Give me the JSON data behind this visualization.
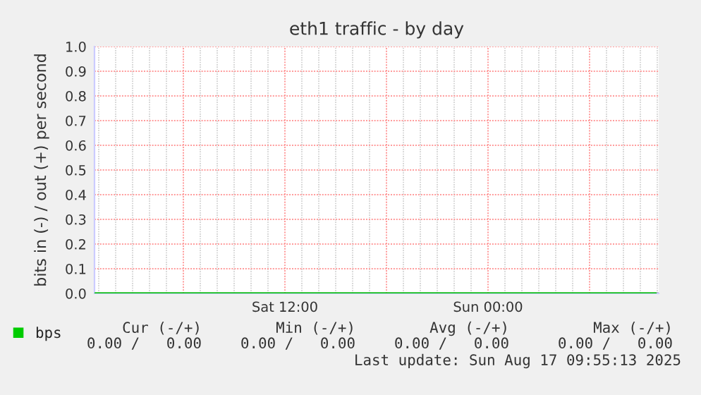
{
  "chart_data": {
    "type": "line",
    "title": "eth1 traffic - by day",
    "ylabel": "bits in (-) / out (+) per second",
    "x": [
      "2025-08-16T00:45",
      "2025-08-16T12:00",
      "2025-08-17T00:00",
      "2025-08-17T09:55"
    ],
    "series": [
      {
        "name": "bps",
        "color": "#00cc00",
        "values": [
          0,
          0,
          0,
          0
        ]
      }
    ],
    "xlim": [
      "2025-08-16T00:45",
      "2025-08-17T10:05"
    ],
    "xticks": [
      {
        "value": "2025-08-16T06:00",
        "label": null
      },
      {
        "value": "2025-08-16T12:00",
        "label": "Sat 12:00"
      },
      {
        "value": "2025-08-16T18:00",
        "label": null
      },
      {
        "value": "2025-08-17T00:00",
        "label": "Sun 00:00"
      },
      {
        "value": "2025-08-17T06:00",
        "label": null
      }
    ],
    "ylim": [
      0,
      1.0
    ],
    "yticks": [
      {
        "value": 0,
        "label": "0.0"
      },
      {
        "value": 0.1,
        "label": "0.1"
      },
      {
        "value": 0.2,
        "label": "0.2"
      },
      {
        "value": 0.3,
        "label": "0.3"
      },
      {
        "value": 0.4,
        "label": "0.4"
      },
      {
        "value": 0.5,
        "label": "0.5"
      },
      {
        "value": 0.6,
        "label": "0.6"
      },
      {
        "value": 0.7,
        "label": "0.7"
      },
      {
        "value": 0.8,
        "label": "0.8"
      },
      {
        "value": 0.9,
        "label": "0.9"
      },
      {
        "value": 1.0,
        "label": "1.0"
      }
    ],
    "grid": true,
    "legend": "bottom left",
    "marker": "none",
    "line_style": "solid",
    "annotations": [
      "Cur (-/+)",
      "Min (-/+)",
      "Avg (-/+)",
      "Max (-/+)",
      "0.00 /   0.00",
      "0.00 /   0.00",
      "0.00 /   0.00",
      "0.00 /   0.00",
      "Last update: Sun Aug 17 09:55:13 2025"
    ]
  }
}
